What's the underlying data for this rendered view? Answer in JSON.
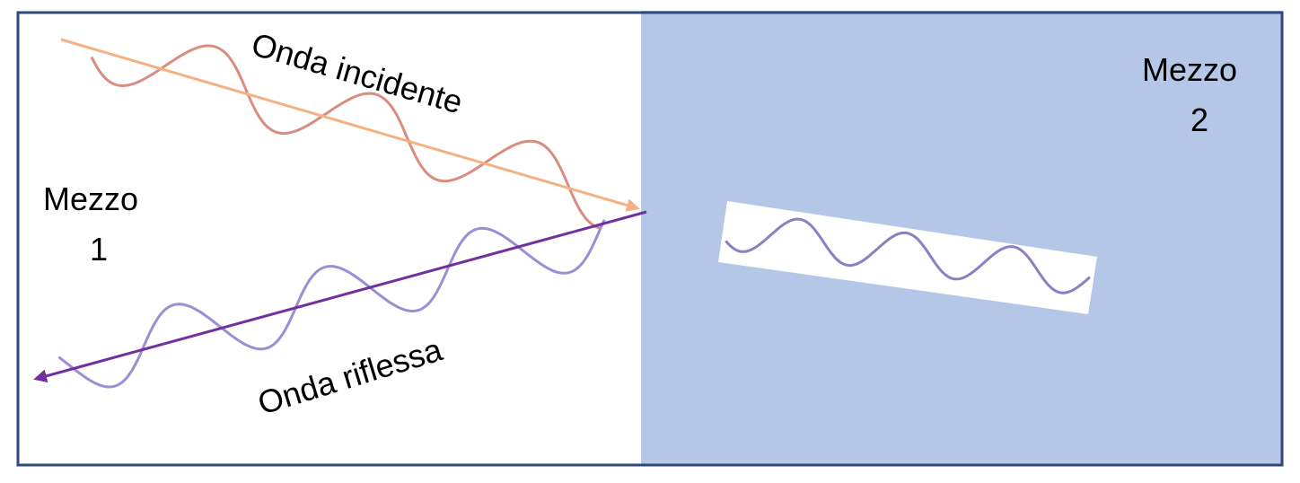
{
  "labels": {
    "medium1_line1": "Mezzo",
    "medium1_line2": "1",
    "medium2_line1": "Mezzo",
    "medium2_line2": "2",
    "incident": "Onda incidente",
    "reflected": "Onda riflessa"
  },
  "colors": {
    "medium1_bg": "#ffffff",
    "medium2_bg": "#b4c7e7",
    "frame": "#2f4a7a",
    "incident_arrow": "#f4b183",
    "incident_wave": "#d98d7e",
    "reflected_arrow": "#7030a0",
    "reflected_wave": "#9a8fd4",
    "transmitted_wave": "#8e7fc4",
    "transmitted_bg": "#ffffff"
  }
}
